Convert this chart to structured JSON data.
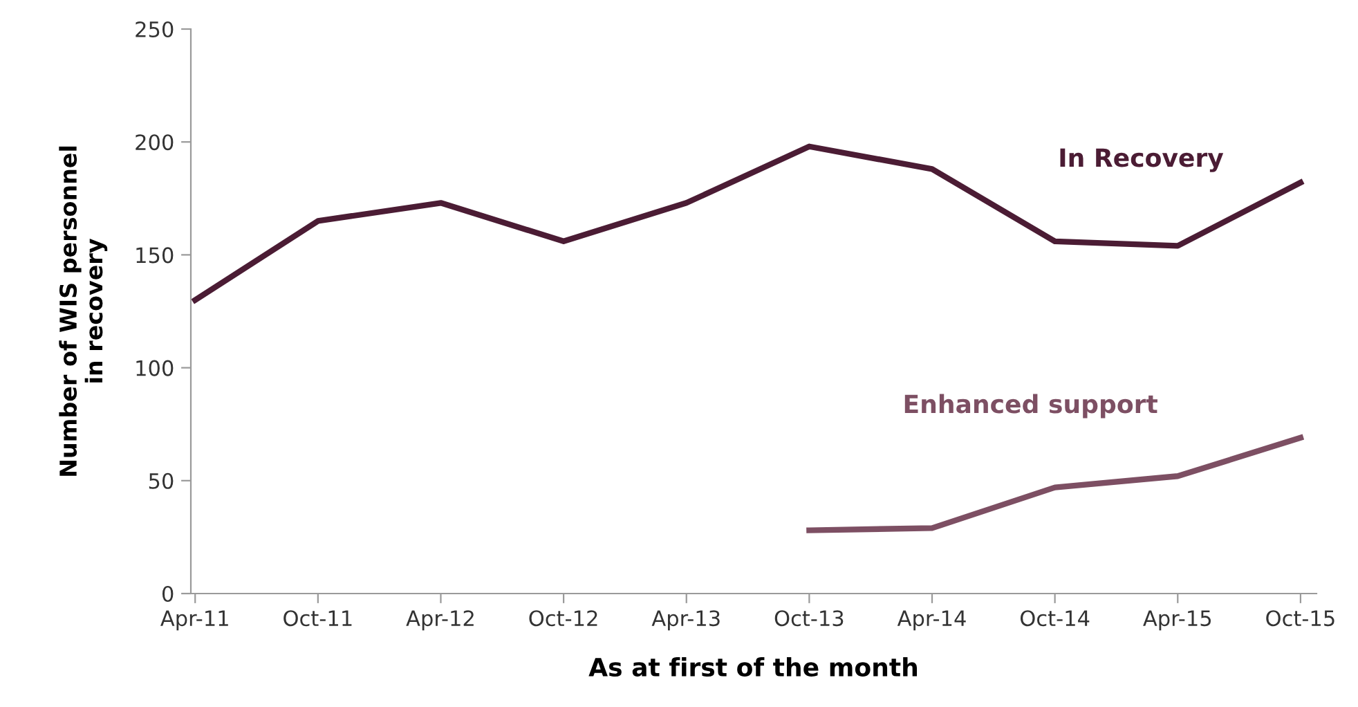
{
  "chart_data": {
    "type": "line",
    "xlabel": "As at first of the month",
    "ylabel": "Number of WIS personnel\nin recovery",
    "categories": [
      "Apr-11",
      "Oct-11",
      "Apr-12",
      "Oct-12",
      "Apr-13",
      "Oct-13",
      "Apr-14",
      "Oct-14",
      "Apr-15",
      "Oct-15"
    ],
    "series": [
      {
        "name": "In Recovery",
        "color": "#4b1c34",
        "values": [
          130,
          165,
          173,
          156,
          173,
          198,
          188,
          156,
          154,
          182
        ]
      },
      {
        "name": "Enhanced support",
        "color": "#7d4f63",
        "values": [
          null,
          null,
          null,
          null,
          null,
          28,
          29,
          47,
          52,
          69
        ]
      }
    ],
    "ylim": [
      0,
      250
    ],
    "yticks": [
      0,
      50,
      100,
      150,
      200,
      250
    ],
    "grid": false,
    "legend": false,
    "marker": "none",
    "line_style": "solid"
  }
}
